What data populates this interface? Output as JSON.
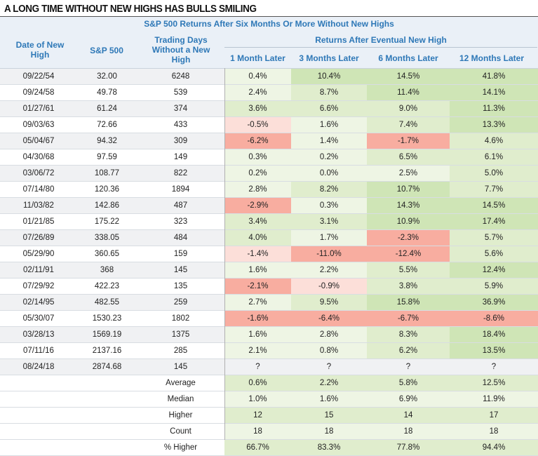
{
  "title": "A LONG TIME WITHOUT NEW HIGHS HAS BULLS SMILING",
  "subtitle": "S&P 500 Returns After Six Months Or More Without New Highs",
  "headers": {
    "date": "Date of New High",
    "sp500": "S&P 500",
    "days": "Trading Days Without a New High",
    "group": "Returns After Eventual New High",
    "m1": "1 Month Later",
    "m3": "3 Months Later",
    "m6": "6 Months Later",
    "m12": "12 Months Later"
  },
  "colors": {
    "positive_strong": "#cfe5b6",
    "positive_mid": "#e0edcd",
    "positive_light": "#eef5e4",
    "negative_light": "#fcdfd9",
    "negative_strong": "#f8ada0",
    "header_text": "#2e78b7",
    "header_bg": "#eaf0f7"
  },
  "chart_data": {
    "type": "table",
    "columns": [
      "Date of New High",
      "S&P 500",
      "Trading Days Without a New High",
      "1 Month Later",
      "3 Months Later",
      "6 Months Later",
      "12 Months Later"
    ],
    "rows": [
      [
        "09/22/54",
        "32.00",
        "6248",
        "0.4%",
        "10.4%",
        "14.5%",
        "41.8%"
      ],
      [
        "09/24/58",
        "49.78",
        "539",
        "2.4%",
        "8.7%",
        "11.4%",
        "14.1%"
      ],
      [
        "01/27/61",
        "61.24",
        "374",
        "3.6%",
        "6.6%",
        "9.0%",
        "11.3%"
      ],
      [
        "09/03/63",
        "72.66",
        "433",
        "-0.5%",
        "1.6%",
        "7.4%",
        "13.3%"
      ],
      [
        "05/04/67",
        "94.32",
        "309",
        "-6.2%",
        "1.4%",
        "-1.7%",
        "4.6%"
      ],
      [
        "04/30/68",
        "97.59",
        "149",
        "0.3%",
        "0.2%",
        "6.5%",
        "6.1%"
      ],
      [
        "03/06/72",
        "108.77",
        "822",
        "0.2%",
        "0.0%",
        "2.5%",
        "5.0%"
      ],
      [
        "07/14/80",
        "120.36",
        "1894",
        "2.8%",
        "8.2%",
        "10.7%",
        "7.7%"
      ],
      [
        "11/03/82",
        "142.86",
        "487",
        "-2.9%",
        "0.3%",
        "14.3%",
        "14.5%"
      ],
      [
        "01/21/85",
        "175.22",
        "323",
        "3.4%",
        "3.1%",
        "10.9%",
        "17.4%"
      ],
      [
        "07/26/89",
        "338.05",
        "484",
        "4.0%",
        "1.7%",
        "-2.3%",
        "5.7%"
      ],
      [
        "05/29/90",
        "360.65",
        "159",
        "-1.4%",
        "-11.0%",
        "-12.4%",
        "5.6%"
      ],
      [
        "02/11/91",
        "368",
        "145",
        "1.6%",
        "2.2%",
        "5.5%",
        "12.4%"
      ],
      [
        "07/29/92",
        "422.23",
        "135",
        "-2.1%",
        "-0.9%",
        "3.8%",
        "5.9%"
      ],
      [
        "02/14/95",
        "482.55",
        "259",
        "2.7%",
        "9.5%",
        "15.8%",
        "36.9%"
      ],
      [
        "05/30/07",
        "1530.23",
        "1802",
        "-1.6%",
        "-6.4%",
        "-6.7%",
        "-8.6%"
      ],
      [
        "03/28/13",
        "1569.19",
        "1375",
        "1.6%",
        "2.8%",
        "8.3%",
        "18.4%"
      ],
      [
        "07/11/16",
        "2137.16",
        "285",
        "2.1%",
        "0.8%",
        "6.2%",
        "13.5%"
      ],
      [
        "08/24/18",
        "2874.68",
        "145",
        "?",
        "?",
        "?",
        "?"
      ]
    ],
    "summary": [
      {
        "label": "Average",
        "values": [
          "0.6%",
          "2.2%",
          "5.8%",
          "12.5%"
        ]
      },
      {
        "label": "Median",
        "values": [
          "1.0%",
          "1.6%",
          "6.9%",
          "11.9%"
        ]
      },
      {
        "label": "Higher",
        "values": [
          "12",
          "15",
          "14",
          "17"
        ]
      },
      {
        "label": "Count",
        "values": [
          "18",
          "18",
          "18",
          "18"
        ]
      },
      {
        "label": "% Higher",
        "values": [
          "66.7%",
          "83.3%",
          "77.8%",
          "94.4%"
        ]
      }
    ]
  }
}
